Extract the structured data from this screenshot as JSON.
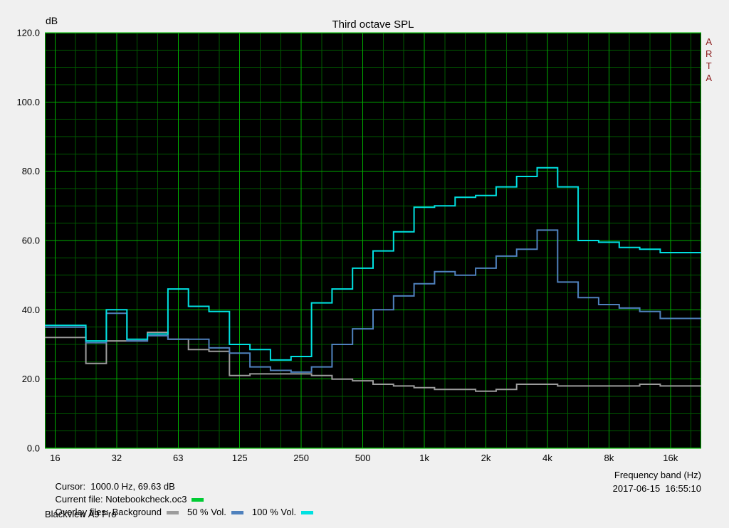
{
  "chart_data": {
    "type": "line",
    "subtype": "third-octave-step",
    "title": "Third octave SPL",
    "ylabel": "dB",
    "xlabel": "Frequency band (Hz)",
    "ylim": [
      0,
      120
    ],
    "y_major_step": 20,
    "y_minor_step": 5,
    "y_tick_labels": [
      "120.0",
      "100.0",
      "80.0",
      "60.0",
      "40.0",
      "20.0",
      "0.0"
    ],
    "bands": [
      16,
      20,
      25,
      31.5,
      40,
      50,
      63,
      80,
      100,
      125,
      160,
      200,
      250,
      315,
      400,
      500,
      630,
      800,
      1000,
      1250,
      1600,
      2000,
      2500,
      3150,
      4000,
      5000,
      6300,
      8000,
      10000,
      12500,
      16000,
      20000
    ],
    "x_ticks": [
      {
        "band_index": 0,
        "label": "16"
      },
      {
        "band_index": 3,
        "label": "32"
      },
      {
        "band_index": 6,
        "label": "63"
      },
      {
        "band_index": 9,
        "label": "125"
      },
      {
        "band_index": 12,
        "label": "250"
      },
      {
        "band_index": 15,
        "label": "500"
      },
      {
        "band_index": 18,
        "label": "1k"
      },
      {
        "band_index": 21,
        "label": "2k"
      },
      {
        "band_index": 24,
        "label": "4k"
      },
      {
        "band_index": 27,
        "label": "8k"
      },
      {
        "band_index": 30,
        "label": "16k"
      }
    ],
    "series": [
      {
        "name": "Background",
        "color": "#9c9c9c",
        "values": [
          32,
          32,
          24.5,
          31,
          31,
          33.5,
          31.5,
          28.5,
          28,
          21,
          21.5,
          21.5,
          21.5,
          21,
          20,
          19.5,
          18.5,
          18,
          17.5,
          17,
          17,
          16.5,
          17,
          18.5,
          18.5,
          18,
          18,
          18,
          18,
          18.5,
          18,
          18
        ]
      },
      {
        "name": "50 % Vol.",
        "color": "#4f81bd",
        "values": [
          35,
          35,
          30.5,
          39,
          31,
          32.5,
          31.5,
          31.5,
          29,
          27.5,
          23.5,
          22.5,
          22,
          23.5,
          30,
          34.5,
          40,
          44,
          47.5,
          51,
          50,
          52,
          55.5,
          57.5,
          63,
          48,
          43.5,
          41.5,
          40.5,
          39.5,
          37.5,
          37.5
        ]
      },
      {
        "name": "100 % Vol.",
        "color": "#00e1e1",
        "values": [
          35.5,
          35.5,
          31,
          40,
          31.5,
          33,
          46,
          41,
          39.5,
          30,
          28.5,
          25.5,
          26.5,
          42,
          46,
          52,
          57,
          62.5,
          69.6,
          70,
          72.5,
          73,
          75.5,
          78.5,
          81,
          75.5,
          60,
          59.5,
          58,
          57.5,
          56.5,
          56.5
        ]
      }
    ],
    "plot_bg": "#000000",
    "grid_major_color": "#00ae00",
    "grid_minor_color": "#005a00",
    "grid": "on",
    "legend_position": "bottom"
  },
  "watermark": {
    "letters": "ARTA",
    "color": "#8b1a1a"
  },
  "footer": {
    "cursor_text": "Cursor:  1000.0 Hz, 69.63 dB",
    "current_file_text": "Current file: Notebookcheck.oc3",
    "current_file_color": "#00cc33",
    "overlay_files_text": "Overlay files:",
    "overlays": [
      {
        "label": "Background",
        "color": "#9c9c9c"
      },
      {
        "label": "50 % Vol.",
        "color": "#4f81bd"
      },
      {
        "label": "100 % Vol.",
        "color": "#00e1e1"
      }
    ],
    "device_text": "Blackview A9 Pro",
    "xlabel_text": "Frequency band (Hz)",
    "datetime_text": "2017-06-15  16:55:10"
  }
}
